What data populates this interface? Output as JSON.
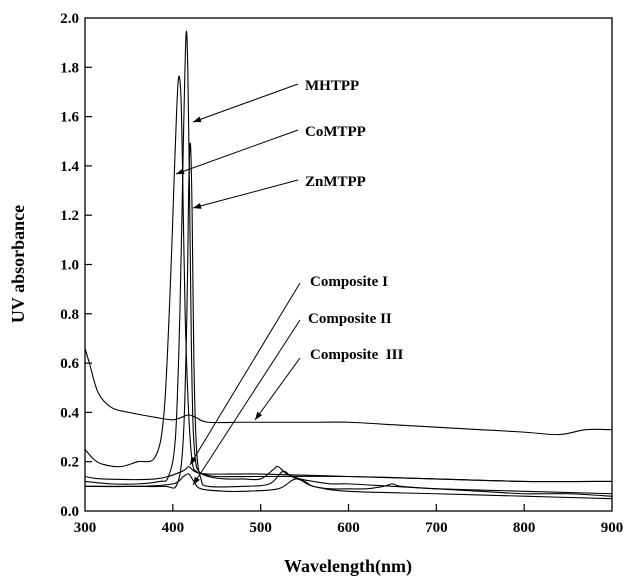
{
  "chart_data": {
    "type": "line",
    "xlabel": "Wavelength(nm)",
    "ylabel": "UV absorbance",
    "xlim": [
      300,
      900
    ],
    "ylim": [
      0.0,
      2.0
    ],
    "x_ticks": [
      "300",
      "400",
      "500",
      "600",
      "700",
      "800",
      "900"
    ],
    "y_ticks": [
      "0.0",
      "0.2",
      "0.4",
      "0.6",
      "0.8",
      "1.0",
      "1.2",
      "1.4",
      "1.6",
      "1.8",
      "2.0"
    ],
    "grid": false,
    "annotations": [
      "MHTPP",
      "CoMTPP",
      "ZnMTPP",
      "Composite I",
      "Composite II",
      "Composite  III"
    ],
    "series": [
      {
        "name": "MHTPP",
        "x": [
          300,
          330,
          360,
          385,
          395,
          403,
          408,
          412,
          415,
          417,
          419,
          421,
          423,
          426,
          430,
          440,
          460,
          480,
          500,
          515,
          520,
          530,
          545,
          560,
          580,
          600,
          650,
          700,
          750,
          800,
          850,
          900
        ],
        "y": [
          0.12,
          0.11,
          0.11,
          0.12,
          0.14,
          0.3,
          0.8,
          1.5,
          1.93,
          1.8,
          1.3,
          0.7,
          0.35,
          0.2,
          0.16,
          0.14,
          0.13,
          0.13,
          0.13,
          0.17,
          0.18,
          0.15,
          0.13,
          0.12,
          0.11,
          0.11,
          0.1,
          0.09,
          0.08,
          0.07,
          0.07,
          0.06
        ]
      },
      {
        "name": "CoMTPP",
        "x": [
          300,
          310,
          320,
          340,
          360,
          380,
          390,
          397,
          402,
          406,
          409,
          411,
          414,
          418,
          422,
          427,
          435,
          450,
          500,
          600,
          700,
          800,
          900
        ],
        "y": [
          0.25,
          0.21,
          0.19,
          0.18,
          0.2,
          0.22,
          0.4,
          0.9,
          1.4,
          1.74,
          1.7,
          1.4,
          0.8,
          0.4,
          0.2,
          0.16,
          0.15,
          0.14,
          0.14,
          0.14,
          0.13,
          0.12,
          0.12
        ]
      },
      {
        "name": "ZnMTPP",
        "x": [
          300,
          350,
          390,
          405,
          412,
          416,
          418,
          420,
          422,
          424,
          427,
          432,
          440,
          480,
          510,
          525,
          535,
          550,
          560,
          580,
          600,
          620,
          640,
          650,
          660,
          700,
          800,
          900
        ],
        "y": [
          0.1,
          0.1,
          0.1,
          0.11,
          0.3,
          0.8,
          1.3,
          1.49,
          1.2,
          0.6,
          0.25,
          0.13,
          0.1,
          0.1,
          0.11,
          0.16,
          0.14,
          0.12,
          0.1,
          0.09,
          0.09,
          0.09,
          0.1,
          0.11,
          0.1,
          0.09,
          0.08,
          0.07
        ]
      },
      {
        "name": "Composite I",
        "x": [
          300,
          320,
          380,
          410,
          418,
          425,
          440,
          500,
          600,
          700,
          800,
          900
        ],
        "y": [
          0.14,
          0.13,
          0.13,
          0.16,
          0.18,
          0.16,
          0.15,
          0.15,
          0.14,
          0.13,
          0.12,
          0.12
        ]
      },
      {
        "name": "Composite II",
        "x": [
          300,
          360,
          400,
          412,
          418,
          424,
          432,
          460,
          480,
          520,
          540,
          560,
          600,
          700,
          800,
          900
        ],
        "y": [
          0.1,
          0.1,
          0.11,
          0.14,
          0.15,
          0.12,
          0.09,
          0.08,
          0.08,
          0.09,
          0.13,
          0.1,
          0.08,
          0.07,
          0.06,
          0.05
        ]
      },
      {
        "name": "Composite  III",
        "x": [
          300,
          305,
          315,
          330,
          350,
          380,
          400,
          410,
          418,
          426,
          440,
          480,
          520,
          560,
          600,
          650,
          700,
          750,
          800,
          840,
          870,
          900
        ],
        "y": [
          0.66,
          0.6,
          0.48,
          0.42,
          0.4,
          0.38,
          0.37,
          0.38,
          0.39,
          0.38,
          0.36,
          0.36,
          0.36,
          0.36,
          0.36,
          0.35,
          0.34,
          0.33,
          0.32,
          0.31,
          0.33,
          0.33
        ]
      }
    ]
  }
}
